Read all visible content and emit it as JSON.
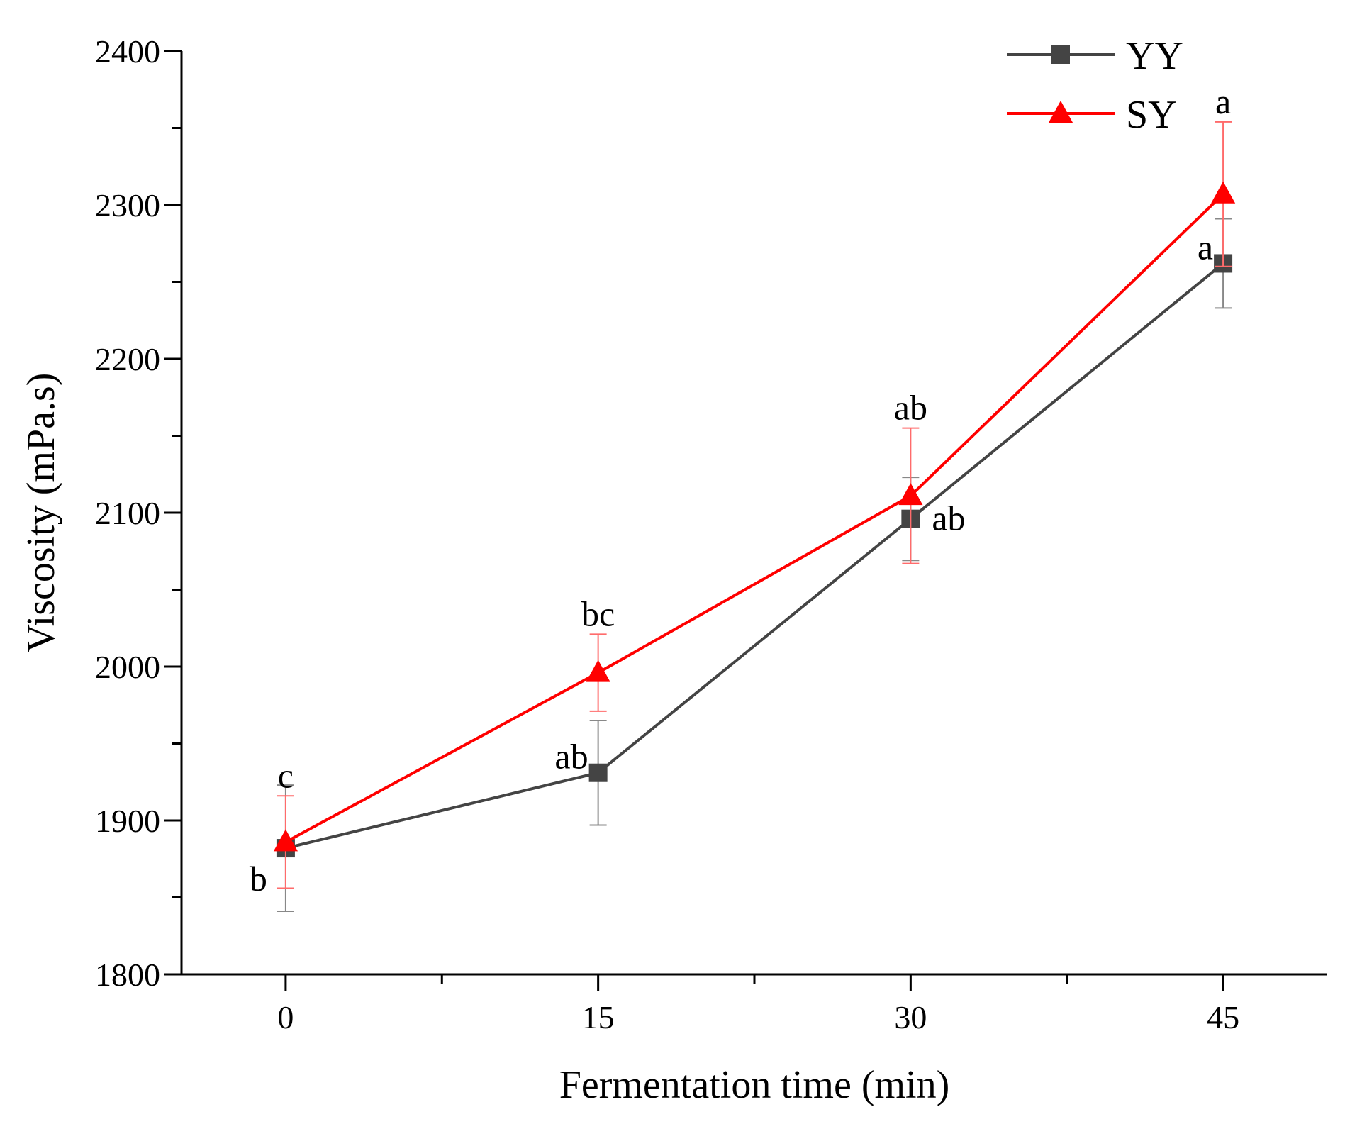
{
  "chart_data": {
    "type": "line",
    "title": "",
    "xlabel": "Fermentation time (min)",
    "ylabel": "Viscosity (mPa.s)",
    "x": [
      0,
      15,
      30,
      45
    ],
    "x_tick_labels": [
      "0",
      "15",
      "30",
      "45"
    ],
    "xlim": [
      -5,
      50
    ],
    "ylim": [
      1800,
      2400
    ],
    "y_ticks": [
      1800,
      1900,
      2000,
      2100,
      2200,
      2300,
      2400
    ],
    "y_tick_labels": [
      "1800",
      "1900",
      "2000",
      "2100",
      "2200",
      "2300",
      "2400"
    ],
    "grid": false,
    "legend_position": "top-right",
    "series": [
      {
        "name": "YY",
        "color": "#444444",
        "marker": "square",
        "values": [
          1882,
          1931,
          2096,
          2262
        ],
        "errors": [
          41,
          34,
          27,
          29
        ],
        "labels": [
          "b",
          "ab",
          "ab",
          "a"
        ],
        "label_positions": [
          "left",
          "left",
          "right",
          "left"
        ]
      },
      {
        "name": "SY",
        "color": "#ff0000",
        "marker": "triangle",
        "values": [
          1886,
          1996,
          2111,
          2307
        ],
        "errors": [
          30,
          25,
          44,
          47
        ],
        "labels": [
          "c",
          "bc",
          "ab",
          "a"
        ],
        "label_positions": [
          "above",
          "above",
          "above",
          "above"
        ]
      }
    ]
  }
}
